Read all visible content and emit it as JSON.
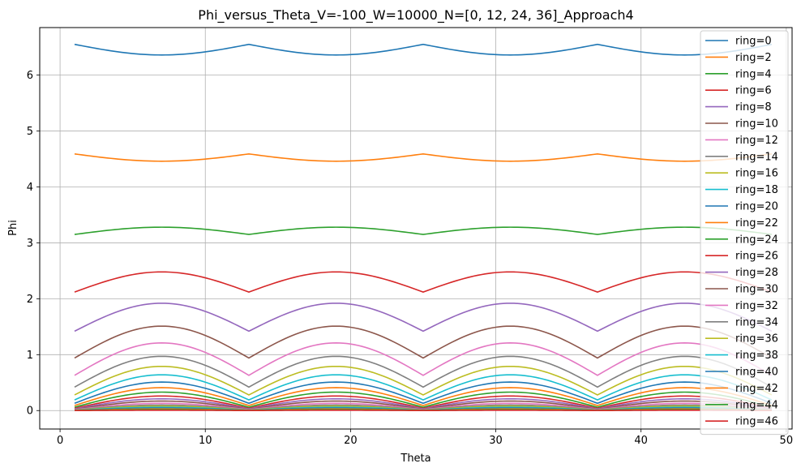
{
  "chart_data": {
    "type": "line",
    "title": "Phi_versus_Theta_V=-100_W=10000_N=[0, 12, 24, 36]_Approach4",
    "xlabel": "Theta",
    "ylabel": "Phi",
    "xlim": [
      -1.4,
      50.4
    ],
    "ylim": [
      -0.33,
      6.85
    ],
    "xticks": [
      0,
      10,
      20,
      30,
      40,
      50
    ],
    "yticks": [
      0,
      1,
      2,
      3,
      4,
      5,
      6
    ],
    "grid": true,
    "legend_position": "top-right",
    "x": [
      1,
      13,
      25,
      37,
      49
    ],
    "period": 12,
    "series": [
      {
        "name": "ring=0",
        "color": "#1f77b4",
        "edge": 6.55,
        "mid": 6.36
      },
      {
        "name": "ring=2",
        "color": "#ff7f0e",
        "edge": 4.59,
        "mid": 4.46
      },
      {
        "name": "ring=4",
        "color": "#2ca02c",
        "edge": 3.15,
        "mid": 3.28
      },
      {
        "name": "ring=6",
        "color": "#d62728",
        "edge": 2.12,
        "mid": 2.48
      },
      {
        "name": "ring=8",
        "color": "#9467bd",
        "edge": 1.42,
        "mid": 1.92
      },
      {
        "name": "ring=10",
        "color": "#8c564b",
        "edge": 0.94,
        "mid": 1.51
      },
      {
        "name": "ring=12",
        "color": "#e377c2",
        "edge": 0.63,
        "mid": 1.21
      },
      {
        "name": "ring=14",
        "color": "#7f7f7f",
        "edge": 0.42,
        "mid": 0.97
      },
      {
        "name": "ring=16",
        "color": "#bcbd22",
        "edge": 0.28,
        "mid": 0.79
      },
      {
        "name": "ring=18",
        "color": "#17becf",
        "edge": 0.19,
        "mid": 0.64
      },
      {
        "name": "ring=20",
        "color": "#1f77b4",
        "edge": 0.13,
        "mid": 0.51
      },
      {
        "name": "ring=22",
        "color": "#ff7f0e",
        "edge": 0.09,
        "mid": 0.41
      },
      {
        "name": "ring=24",
        "color": "#2ca02c",
        "edge": 0.06,
        "mid": 0.33
      },
      {
        "name": "ring=26",
        "color": "#d62728",
        "edge": 0.04,
        "mid": 0.26
      },
      {
        "name": "ring=28",
        "color": "#9467bd",
        "edge": 0.03,
        "mid": 0.21
      },
      {
        "name": "ring=30",
        "color": "#8c564b",
        "edge": 0.02,
        "mid": 0.17
      },
      {
        "name": "ring=32",
        "color": "#e377c2",
        "edge": 0.015,
        "mid": 0.13
      },
      {
        "name": "ring=34",
        "color": "#7f7f7f",
        "edge": 0.01,
        "mid": 0.1
      },
      {
        "name": "ring=36",
        "color": "#bcbd22",
        "edge": 0.007,
        "mid": 0.08
      },
      {
        "name": "ring=38",
        "color": "#17becf",
        "edge": 0.005,
        "mid": 0.06
      },
      {
        "name": "ring=40",
        "color": "#1f77b4",
        "edge": 0.003,
        "mid": 0.045
      },
      {
        "name": "ring=42",
        "color": "#ff7f0e",
        "edge": 0.002,
        "mid": 0.03
      },
      {
        "name": "ring=44",
        "color": "#2ca02c",
        "edge": 0.001,
        "mid": 0.018
      },
      {
        "name": "ring=46",
        "color": "#d62728",
        "edge": 0.0,
        "mid": 0.006
      }
    ]
  }
}
